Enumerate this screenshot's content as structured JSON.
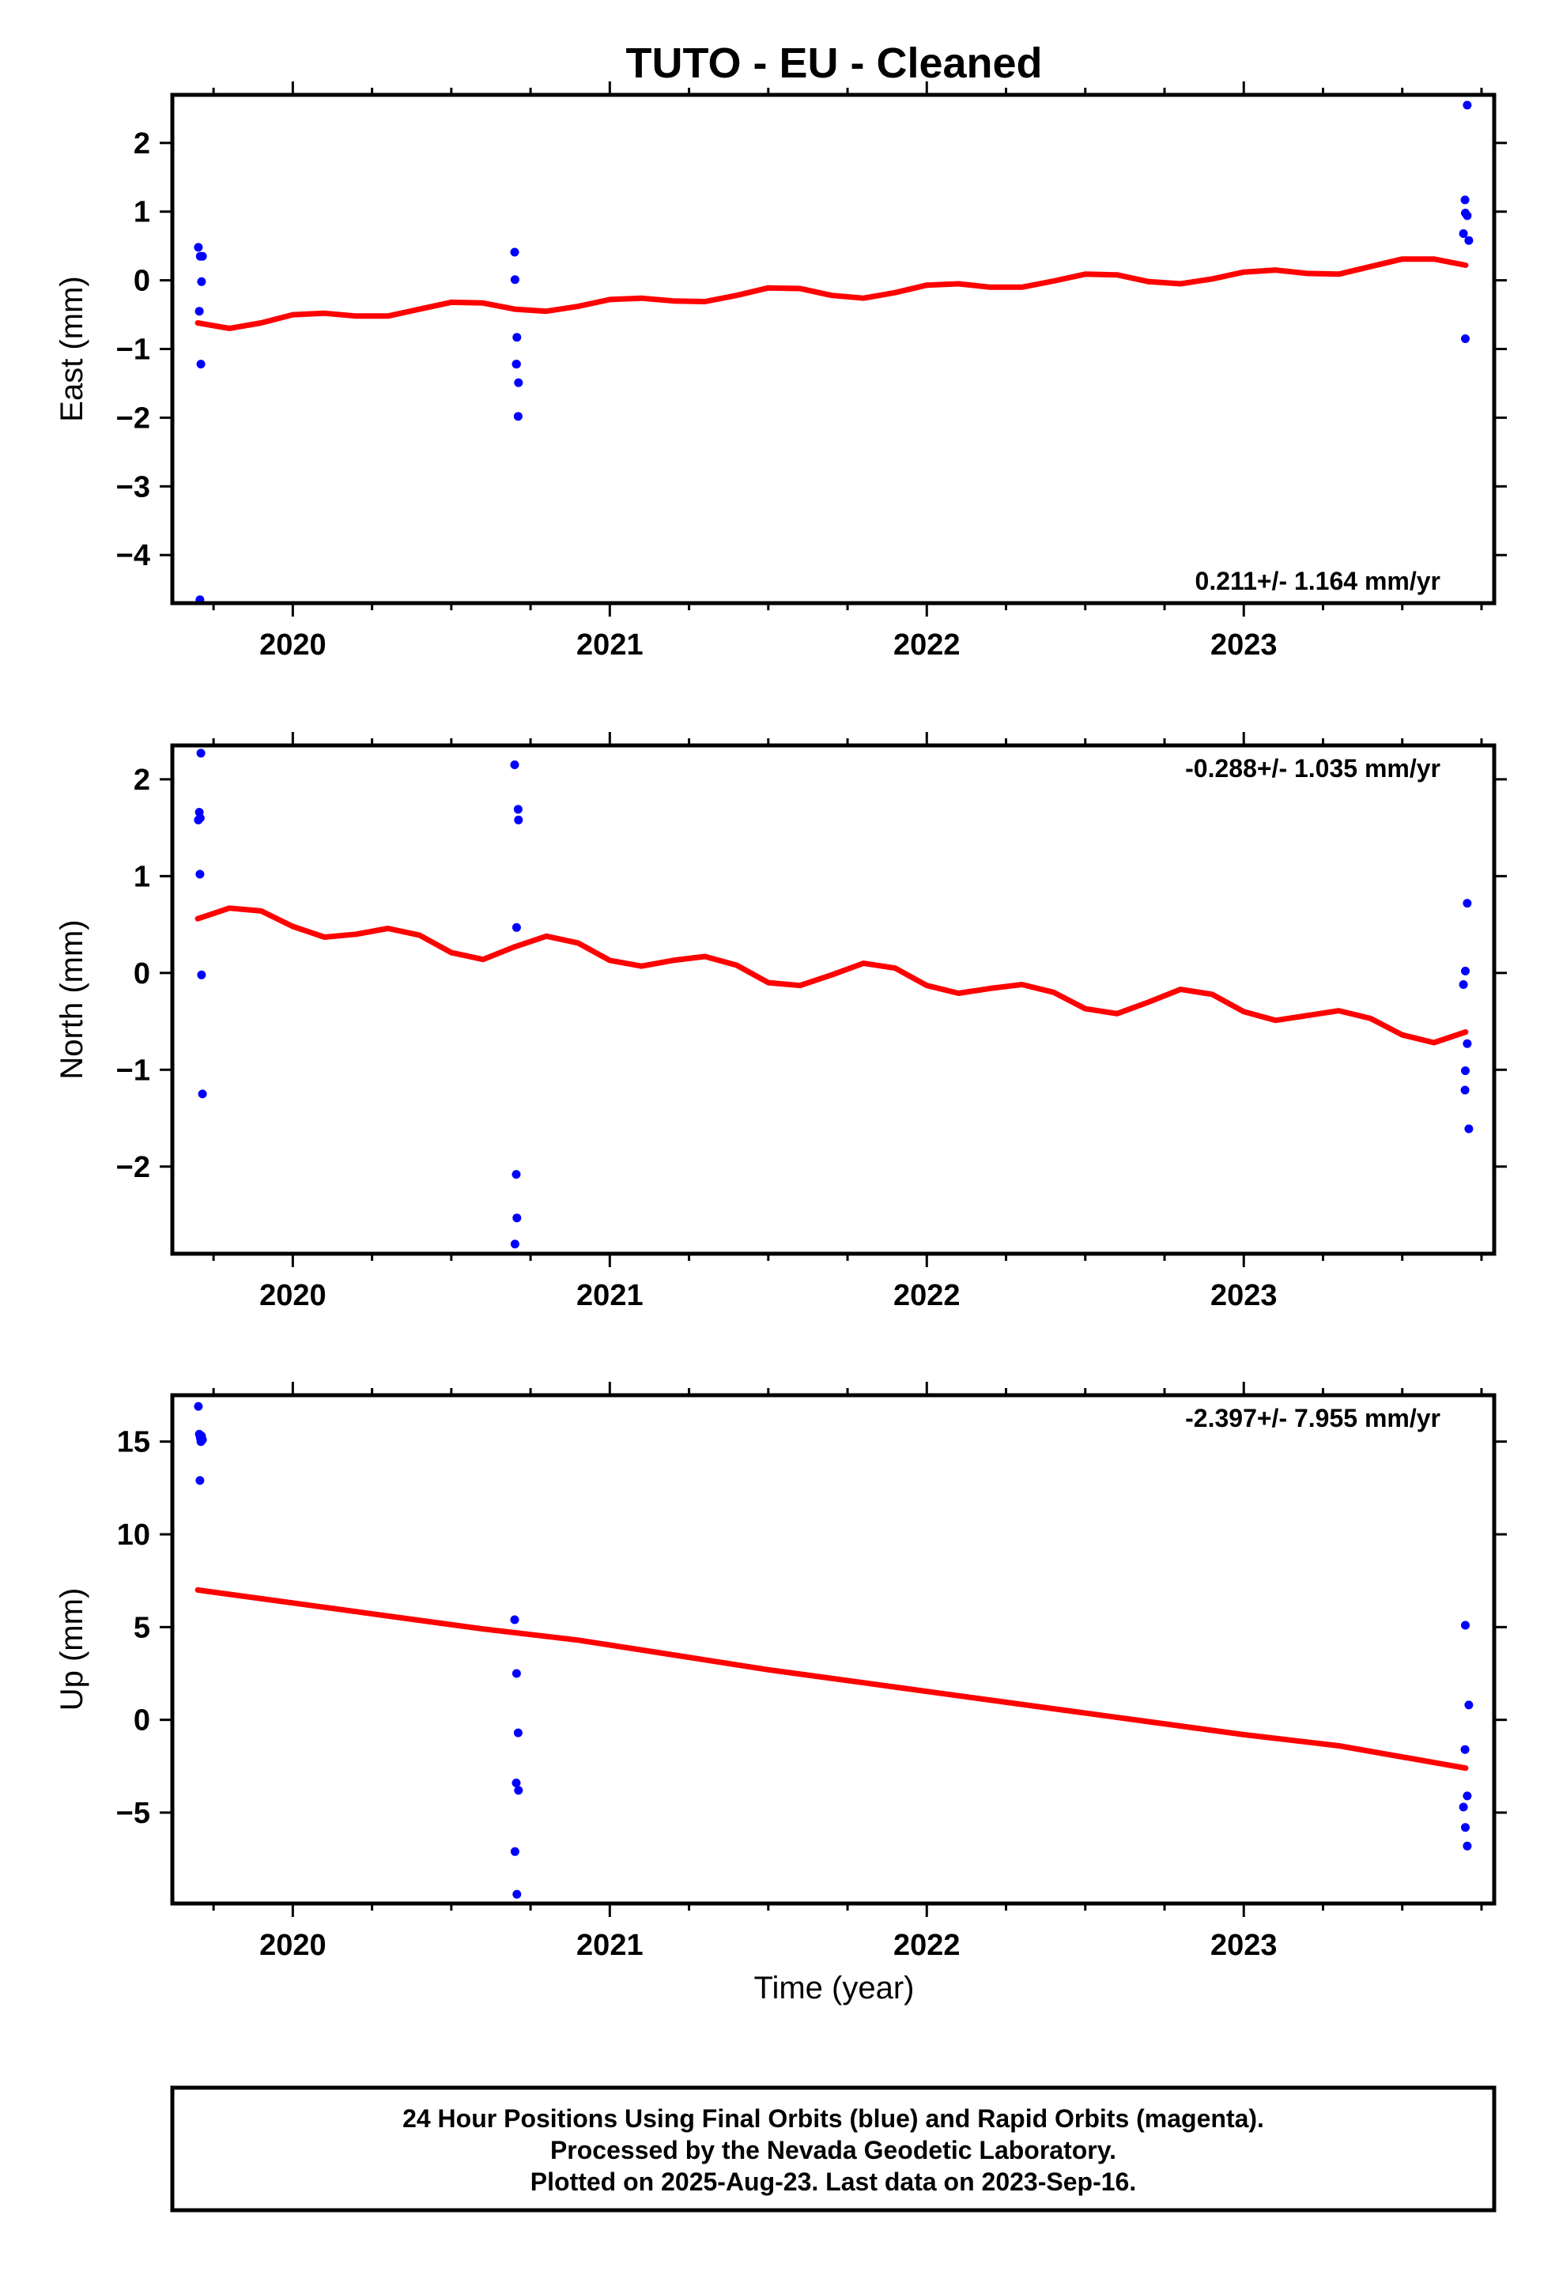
{
  "title": "TUTO  - EU - Cleaned",
  "x_axis_label": "Time (year)",
  "footer": {
    "line1": "24 Hour Positions Using Final Orbits (blue) and Rapid Orbits (magenta).",
    "line2": "Processed by the Nevada Geodetic Laboratory.",
    "line3": "Plotted on 2025-Aug-23. Last data on 2023-Sep-16."
  },
  "colors": {
    "data_points": "#0000ff",
    "fit_line": "#ff0000",
    "frame": "#000000"
  },
  "chart_data": [
    {
      "type": "scatter",
      "title": "",
      "ylabel": "East (mm)",
      "xlabel": "",
      "rate_label": "0.211+/- 1.164 mm/yr",
      "rate_placement": "bottom-right",
      "xlim": [
        2019.62,
        2023.79
      ],
      "ylim": [
        -4.7,
        2.7
      ],
      "x_ticks": [
        2020,
        2021,
        2022,
        2023
      ],
      "x_tick_labels": [
        "2020",
        "2021",
        "2022",
        "2023"
      ],
      "y_ticks": [
        -4,
        -3,
        -2,
        -1,
        0,
        1,
        2
      ],
      "y_tick_labels": [
        "−4",
        "−3",
        "−2",
        "−1",
        "0",
        "1",
        "2"
      ],
      "grid": false,
      "points": {
        "x": [
          2019.706,
          2019.707,
          2019.708,
          2019.709,
          2019.71,
          2019.711,
          2019.712,
          2020.701,
          2020.703,
          2020.704,
          2020.706,
          2020.708,
          2020.709,
          2020.711,
          2023.694,
          2023.697,
          2023.699,
          2023.701,
          2023.703,
          2023.705,
          2023.706
        ],
        "y": [
          0.48,
          -4.65,
          -0.02,
          -0.45,
          -1.22,
          0.35,
          0.35,
          0.01,
          -0.83,
          0.41,
          -1.22,
          -1.49,
          -1.22,
          -1.98,
          1.17,
          0.68,
          -0.85,
          0.94,
          0.98,
          2.55,
          0.58
        ]
      },
      "fit": {
        "x": [
          2019.7,
          2019.8,
          2019.9,
          2020.0,
          2020.1,
          2020.2,
          2020.3,
          2020.4,
          2020.5,
          2020.6,
          2020.7,
          2020.8,
          2020.9,
          2021.0,
          2021.1,
          2021.2,
          2021.3,
          2021.4,
          2021.5,
          2021.6,
          2021.7,
          2021.8,
          2021.9,
          2022.0,
          2022.1,
          2022.2,
          2022.3,
          2022.4,
          2022.5,
          2022.6,
          2022.7,
          2022.8,
          2022.9,
          2023.0,
          2023.1,
          2023.2,
          2023.3,
          2023.4,
          2023.5,
          2023.6,
          2023.7
        ],
        "y": [
          -0.62,
          -0.7,
          -0.62,
          -0.5,
          -0.48,
          -0.52,
          -0.52,
          -0.42,
          -0.32,
          -0.33,
          -0.42,
          -0.45,
          -0.38,
          -0.28,
          -0.26,
          -0.3,
          -0.31,
          -0.22,
          -0.11,
          -0.12,
          -0.22,
          -0.26,
          -0.18,
          -0.07,
          -0.05,
          -0.1,
          -0.1,
          -0.01,
          0.09,
          0.08,
          -0.02,
          -0.05,
          0.02,
          0.12,
          0.15,
          0.1,
          0.09,
          0.2,
          0.31,
          0.31,
          0.22
        ]
      }
    },
    {
      "type": "scatter",
      "title": "",
      "ylabel": "North (mm)",
      "xlabel": "",
      "rate_label": "-0.288+/- 1.035 mm/yr",
      "rate_placement": "top-right",
      "xlim": [
        2019.62,
        2023.79
      ],
      "ylim": [
        -2.9,
        2.35
      ],
      "x_ticks": [
        2020,
        2021,
        2022,
        2023
      ],
      "x_tick_labels": [
        "2020",
        "2021",
        "2022",
        "2023"
      ],
      "y_ticks": [
        -2,
        -1,
        0,
        1,
        2
      ],
      "y_tick_labels": [
        "−2",
        "−1",
        "0",
        "1",
        "2"
      ],
      "grid": false,
      "points": {
        "x": [
          2019.706,
          2019.707,
          2019.708,
          2019.709,
          2019.71,
          2019.711,
          2019.712,
          2020.701,
          2020.703,
          2020.704,
          2020.706,
          2020.708,
          2020.709,
          2020.711,
          2023.694,
          2023.697,
          2023.699,
          2023.701,
          2023.703,
          2023.705,
          2023.706
        ],
        "y": [
          1.58,
          1.02,
          -0.02,
          1.66,
          2.27,
          -1.25,
          1.6,
          -2.8,
          -2.53,
          2.15,
          0.47,
          1.58,
          -2.08,
          1.69,
          -1.21,
          -0.12,
          -1.01,
          -0.73,
          0.02,
          0.72,
          -1.61
        ]
      },
      "fit": {
        "x": [
          2019.7,
          2019.8,
          2019.9,
          2020.0,
          2020.1,
          2020.2,
          2020.3,
          2020.4,
          2020.5,
          2020.6,
          2020.7,
          2020.8,
          2020.9,
          2021.0,
          2021.1,
          2021.2,
          2021.3,
          2021.4,
          2021.5,
          2021.6,
          2021.7,
          2021.8,
          2021.9,
          2022.0,
          2022.1,
          2022.2,
          2022.3,
          2022.4,
          2022.5,
          2022.6,
          2022.7,
          2022.8,
          2022.9,
          2023.0,
          2023.1,
          2023.2,
          2023.3,
          2023.4,
          2023.5,
          2023.6,
          2023.7
        ],
        "y": [
          0.56,
          0.67,
          0.64,
          0.48,
          0.37,
          0.4,
          0.46,
          0.39,
          0.21,
          0.14,
          0.27,
          0.38,
          0.31,
          0.13,
          0.07,
          0.13,
          0.17,
          0.08,
          -0.1,
          -0.13,
          -0.02,
          0.1,
          0.05,
          -0.13,
          -0.21,
          -0.16,
          -0.12,
          -0.2,
          -0.37,
          -0.42,
          -0.3,
          -0.17,
          -0.22,
          -0.4,
          -0.49,
          -0.44,
          -0.39,
          -0.47,
          -0.64,
          -0.72,
          -0.61
        ]
      }
    },
    {
      "type": "scatter",
      "title": "",
      "ylabel": "Up (mm)",
      "xlabel": "Time (year)",
      "rate_label": "-2.397+/- 7.955 mm/yr",
      "rate_placement": "top-right",
      "xlim": [
        2019.62,
        2023.79
      ],
      "ylim": [
        -9.9,
        17.5
      ],
      "x_ticks": [
        2020,
        2021,
        2022,
        2023
      ],
      "x_tick_labels": [
        "2020",
        "2021",
        "2022",
        "2023"
      ],
      "y_ticks": [
        -5,
        0,
        5,
        10,
        15
      ],
      "y_tick_labels": [
        "−5",
        "0",
        "5",
        "10",
        "15"
      ],
      "grid": false,
      "points": {
        "x": [
          2019.706,
          2019.707,
          2019.708,
          2019.709,
          2019.71,
          2019.711,
          2019.712,
          2020.701,
          2020.703,
          2020.704,
          2020.706,
          2020.708,
          2020.709,
          2020.711,
          2023.694,
          2023.697,
          2023.699,
          2023.701,
          2023.703,
          2023.705,
          2023.706
        ],
        "y": [
          16.9,
          12.9,
          15.3,
          15.4,
          15.0,
          15.1,
          15.2,
          -7.1,
          -9.4,
          5.4,
          2.5,
          -3.8,
          -3.4,
          -0.7,
          -1.6,
          -4.7,
          -5.8,
          -6.8,
          5.1,
          -4.1,
          0.8
        ]
      },
      "fit": {
        "x": [
          2019.7,
          2020.0,
          2020.3,
          2020.6,
          2020.9,
          2021.2,
          2021.5,
          2021.8,
          2022.1,
          2022.4,
          2022.7,
          2023.0,
          2023.3,
          2023.7
        ],
        "y": [
          7.0,
          6.3,
          5.6,
          4.9,
          4.3,
          3.5,
          2.7,
          2.0,
          1.3,
          0.6,
          -0.1,
          -0.8,
          -1.4,
          -2.6
        ]
      }
    }
  ]
}
